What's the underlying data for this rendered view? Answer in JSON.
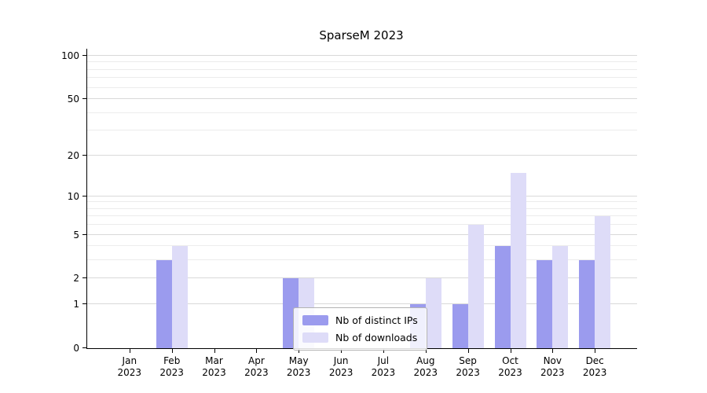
{
  "chart_data": {
    "type": "bar",
    "title": "SparseM 2023",
    "categories": [
      "Jan",
      "Feb",
      "Mar",
      "Apr",
      "May",
      "Jun",
      "Jul",
      "Aug",
      "Sep",
      "Oct",
      "Nov",
      "Dec"
    ],
    "year": "2023",
    "series": [
      {
        "key": "distinct-ips",
        "name": "Nb of distinct IPs",
        "color": "#9b9bee",
        "values": [
          0,
          3,
          0,
          0,
          2,
          0,
          0,
          1,
          1,
          4,
          3,
          3
        ]
      },
      {
        "key": "downloads",
        "name": "Nb of downloads",
        "color": "#dedcf8",
        "values": [
          0,
          4,
          0,
          0,
          2,
          0,
          0,
          2,
          6,
          15,
          4,
          7
        ]
      }
    ],
    "yscale": "log1p",
    "ylim": [
      0,
      100
    ],
    "yticks": [
      0,
      1,
      2,
      5,
      10,
      20,
      50,
      100
    ],
    "gridline_values": [
      1,
      2,
      3,
      4,
      5,
      6,
      7,
      8,
      9,
      10,
      20,
      30,
      40,
      50,
      60,
      70,
      80,
      90,
      100
    ],
    "grid": true,
    "legend_position": "lower center"
  },
  "style": {
    "axis_color": "#000000",
    "major_grid_color": "#d9d9d9",
    "minor_grid_color": "#ececec",
    "legend_border_color": "#b3b3b3",
    "background": "#ffffff"
  }
}
